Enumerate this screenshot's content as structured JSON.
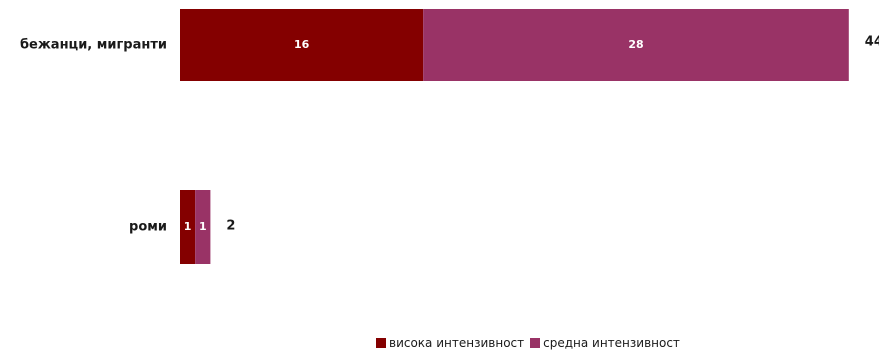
{
  "chart_data": {
    "type": "bar",
    "orientation": "horizontal",
    "stacked": true,
    "categories": [
      "бежанци, мигранти",
      "роми"
    ],
    "series": [
      {
        "name": "висока интензивност",
        "color": "#840000",
        "values": [
          16,
          1
        ]
      },
      {
        "name": "средна интензивност",
        "color": "#993366",
        "values": [
          28,
          1
        ]
      }
    ],
    "totals": [
      44,
      2
    ],
    "grid": false,
    "legend_position": "bottom"
  }
}
